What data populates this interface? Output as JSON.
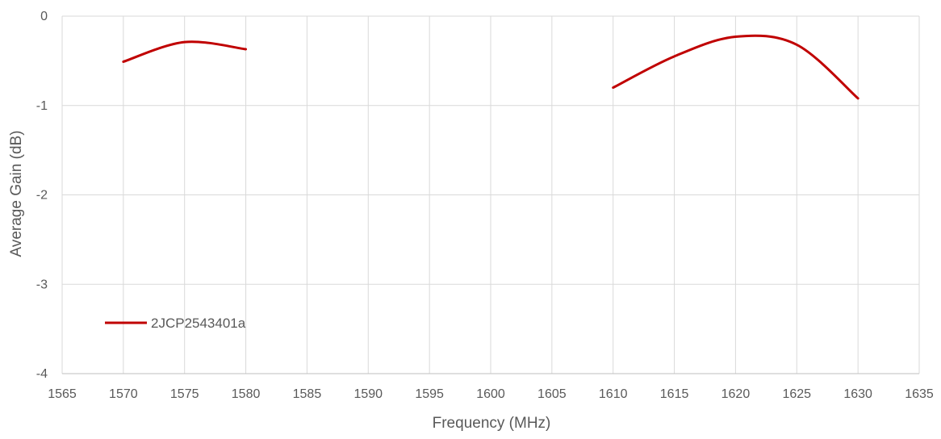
{
  "chart_data": {
    "type": "line",
    "title": "",
    "xlabel": "Frequency (MHz)",
    "ylabel": "Average Gain (dB)",
    "xlim": [
      1565,
      1635
    ],
    "ylim": [
      -4,
      0
    ],
    "x_ticks": [
      1565,
      1570,
      1575,
      1580,
      1585,
      1590,
      1595,
      1600,
      1605,
      1610,
      1615,
      1620,
      1625,
      1630,
      1635
    ],
    "y_ticks": [
      0,
      -1,
      -2,
      -3,
      -4
    ],
    "grid": "both",
    "legend_placement": "inside-bottom-left",
    "series": [
      {
        "name": "2JCP2543401a",
        "color": "#c00000",
        "segments": [
          {
            "x": [
              1570,
              1575,
              1580
            ],
            "y": [
              -0.51,
              -0.29,
              -0.37
            ]
          },
          {
            "x": [
              1610,
              1615,
              1620,
              1625,
              1630
            ],
            "y": [
              -0.8,
              -0.45,
              -0.23,
              -0.32,
              -0.92
            ]
          }
        ]
      }
    ]
  }
}
